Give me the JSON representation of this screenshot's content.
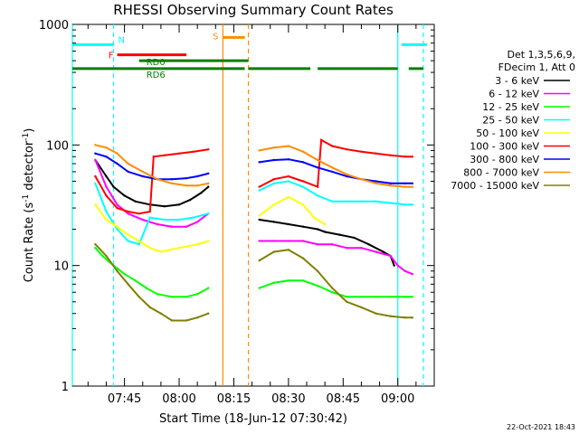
{
  "chart_data": {
    "type": "line",
    "title": "RHESSI Observing Summary Count Rates",
    "xlabel": "Start Time (18-Jun-12 07:30:42)",
    "ylabel_main": "Count Rate (s",
    "ylabel_exp1": "-1",
    "ylabel_mid": " detector",
    "ylabel_exp2": "-1",
    "ylabel_end": ")",
    "yscale": "log",
    "ylim": [
      1,
      1000
    ],
    "y_ticks": [
      {
        "value": 1,
        "label": "1"
      },
      {
        "value": 10,
        "label": "10"
      },
      {
        "value": 100,
        "label": "100"
      },
      {
        "value": 1000,
        "label": "1000"
      }
    ],
    "xlim": [
      "07:30:42",
      "09:10:00"
    ],
    "x_ticks": [
      "07:45",
      "08:00",
      "08:15",
      "08:30",
      "08:45",
      "09:00"
    ],
    "footer_date": "22-Oct-2021 18:43",
    "legend_header": [
      "Det 1,3,5,6,9,",
      "FDecim 1, Att 0"
    ],
    "series": [
      {
        "name": "3 - 6 keV",
        "color": "#000000",
        "x": [
          "07:37",
          "07:40",
          "07:42",
          "07:45",
          "07:48",
          "07:52",
          "07:56",
          "08:00",
          "08:03",
          "08:06",
          "08:08",
          "08:22",
          "08:26",
          "08:30",
          "08:34",
          "08:38",
          "08:40",
          "08:44",
          "08:48",
          "08:52",
          "08:56",
          "08:58",
          "08:59"
        ],
        "y": [
          75,
          55,
          45,
          38,
          34,
          32,
          31,
          32,
          35,
          40,
          45,
          24,
          23,
          22,
          21,
          20,
          19,
          18,
          17,
          15,
          13,
          12,
          10
        ]
      },
      {
        "name": "6 - 12 keV",
        "color": "#ff00ff",
        "x": [
          "07:37",
          "07:40",
          "07:43",
          "07:46",
          "07:50",
          "07:54",
          "07:58",
          "08:02",
          "08:05",
          "08:08",
          "08:22",
          "08:26",
          "08:30",
          "08:34",
          "08:38",
          "08:42",
          "08:46",
          "08:50",
          "08:54",
          "08:58",
          "09:00",
          "09:02",
          "09:04"
        ],
        "y": [
          75,
          45,
          32,
          27,
          24,
          22,
          21,
          21,
          23,
          27,
          16,
          16,
          16,
          16,
          15,
          15,
          14,
          14,
          13,
          12,
          10,
          9,
          8.5
        ]
      },
      {
        "name": "12 - 25 keV",
        "color": "#00ff00",
        "x": [
          "07:37",
          "07:39",
          "07:42",
          "07:45",
          "07:48",
          "07:51",
          "07:54",
          "07:58",
          "08:02",
          "08:05",
          "08:08",
          "08:22",
          "08:26",
          "08:30",
          "08:34",
          "08:38",
          "08:42",
          "08:46",
          "08:50",
          "08:54",
          "08:58",
          "09:02",
          "09:04"
        ],
        "y": [
          14,
          12,
          10,
          8.5,
          7.5,
          6.5,
          5.8,
          5.5,
          5.5,
          5.8,
          6.5,
          6.5,
          7.2,
          7.5,
          7.5,
          6.8,
          6,
          5.5,
          5.5,
          5.5,
          5.5,
          5.5,
          5.5
        ]
      },
      {
        "name": "25 - 50 keV",
        "color": "#00ffff",
        "x": [
          "07:37",
          "07:40",
          "07:43",
          "07:46",
          "07:49",
          "07:52",
          "07:56",
          "08:00",
          "08:04",
          "08:08",
          "08:22",
          "08:26",
          "08:30",
          "08:34",
          "08:38",
          "08:42",
          "08:46",
          "08:50",
          "08:54",
          "08:58",
          "09:02",
          "09:04"
        ],
        "y": [
          48,
          28,
          20,
          16,
          15,
          25,
          24,
          24,
          25,
          27,
          42,
          48,
          50,
          45,
          38,
          34,
          34,
          34,
          34,
          33,
          32,
          32
        ]
      },
      {
        "name": "50 - 100 keV",
        "color": "#ffff00",
        "x": [
          "07:37",
          "07:40",
          "07:43",
          "07:46",
          "07:49",
          "07:52",
          "07:55",
          "08:00",
          "08:05",
          "08:08",
          "08:22",
          "08:26",
          "08:30",
          "08:34",
          "08:37",
          "08:40"
        ],
        "y": [
          32,
          24,
          21,
          18,
          16,
          14,
          13,
          14,
          15,
          16,
          26,
          32,
          37,
          32,
          25,
          22
        ]
      },
      {
        "name": "100 - 300 keV",
        "color": "#ff0000",
        "x": [
          "07:37",
          "07:40",
          "07:43",
          "07:46",
          "07:49",
          "07:52",
          "07:53",
          "07:56",
          "08:00",
          "08:04",
          "08:08",
          "08:22",
          "08:26",
          "08:30",
          "08:34",
          "08:38",
          "08:39",
          "08:42",
          "08:46",
          "08:50",
          "08:54",
          "08:58",
          "09:02",
          "09:04"
        ],
        "y": [
          55,
          38,
          30,
          28,
          27,
          28,
          80,
          82,
          85,
          88,
          92,
          45,
          52,
          55,
          50,
          45,
          110,
          98,
          92,
          88,
          85,
          82,
          80,
          80
        ]
      },
      {
        "name": "300 - 800 keV",
        "color": "#0000ff",
        "x": [
          "07:37",
          "07:40",
          "07:43",
          "07:46",
          "07:50",
          "07:54",
          "07:58",
          "08:02",
          "08:05",
          "08:08",
          "08:22",
          "08:26",
          "08:30",
          "08:34",
          "08:38",
          "08:42",
          "08:46",
          "08:50",
          "08:54",
          "08:58",
          "09:02",
          "09:04"
        ],
        "y": [
          85,
          80,
          70,
          60,
          55,
          52,
          52,
          53,
          55,
          58,
          72,
          75,
          76,
          72,
          65,
          60,
          55,
          52,
          50,
          48,
          48,
          48
        ]
      },
      {
        "name": "800 - 7000 keV",
        "color": "#ff8c00",
        "x": [
          "07:37",
          "07:40",
          "07:43",
          "07:46",
          "07:50",
          "07:54",
          "07:58",
          "08:02",
          "08:05",
          "08:08",
          "08:22",
          "08:26",
          "08:30",
          "08:34",
          "08:38",
          "08:42",
          "08:46",
          "08:50",
          "08:54",
          "08:58",
          "09:02",
          "09:04"
        ],
        "y": [
          100,
          95,
          85,
          70,
          60,
          52,
          48,
          46,
          46,
          48,
          90,
          95,
          98,
          88,
          75,
          65,
          57,
          52,
          48,
          46,
          45,
          45
        ]
      },
      {
        "name": "7000 - 15000 keV",
        "color": "#808000",
        "x": [
          "07:37",
          "07:40",
          "07:43",
          "07:46",
          "07:49",
          "07:52",
          "07:55",
          "07:58",
          "08:02",
          "08:05",
          "08:08",
          "08:22",
          "08:26",
          "08:30",
          "08:34",
          "08:38",
          "08:42",
          "08:46",
          "08:50",
          "08:54",
          "08:58",
          "09:02",
          "09:04"
        ],
        "y": [
          15,
          12,
          9,
          7,
          5.5,
          4.5,
          4,
          3.5,
          3.5,
          3.7,
          4,
          11,
          13,
          13.5,
          11.5,
          9,
          6.5,
          5,
          4.5,
          4,
          3.8,
          3.7,
          3.7
        ]
      }
    ],
    "annotations": {
      "flags": [
        {
          "label": "N",
          "color": "#00ffff",
          "segments": [
            [
              "07:30:42",
              "07:42"
            ],
            [
              "09:01",
              "09:08"
            ]
          ],
          "level": 680
        },
        {
          "label": "S",
          "color": "#ff8c00",
          "segments": [
            [
              "08:12",
              "08:18"
            ]
          ],
          "level": 780
        },
        {
          "label": "F",
          "color": "#ff0000",
          "segments": [
            [
              "07:43",
              "08:02"
            ]
          ],
          "level": 560
        },
        {
          "label": "RD0",
          "color": "#008000",
          "segments": [
            [
              "07:49",
              "08:19"
            ]
          ],
          "level": 500
        },
        {
          "label": "RD6",
          "color": "#008000",
          "segments": [
            [
              "07:30:42",
              "07:55"
            ],
            [
              "07:55",
              "08:18"
            ],
            [
              "08:19",
              "08:36"
            ],
            [
              "08:38",
              "09:00"
            ],
            [
              "09:03",
              "09:07"
            ]
          ],
          "level": 430
        }
      ],
      "vertical_lines": [
        {
          "time": "07:30:42",
          "color": "#00ffff",
          "style": "solid"
        },
        {
          "time": "07:42",
          "color": "#00ffff",
          "style": "dashed"
        },
        {
          "time": "08:12",
          "color": "#ff8c00",
          "style": "solid"
        },
        {
          "time": "08:19",
          "color": "#ff8c00",
          "style": "dashed"
        },
        {
          "time": "09:00",
          "color": "#00ffff",
          "style": "solid"
        },
        {
          "time": "09:07",
          "color": "#00ffff",
          "style": "dashed"
        }
      ]
    }
  }
}
